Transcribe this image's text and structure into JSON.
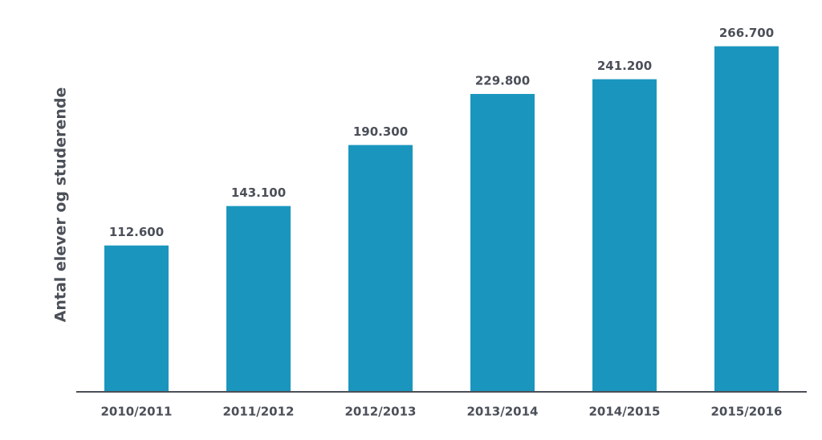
{
  "chart_data": {
    "type": "bar",
    "y_label": "Antal elever og studerende",
    "categories": [
      "2010/2011",
      "2011/2012",
      "2012/2013",
      "2013/2014",
      "2014/2015",
      "2015/2016"
    ],
    "values": [
      112600,
      143100,
      190300,
      229800,
      241200,
      266700
    ],
    "value_labels": [
      "112.600",
      "143.100",
      "190.300",
      "229.800",
      "241.200",
      "266.700"
    ],
    "color": "#1a96be",
    "ylim": [
      0,
      300000
    ]
  }
}
